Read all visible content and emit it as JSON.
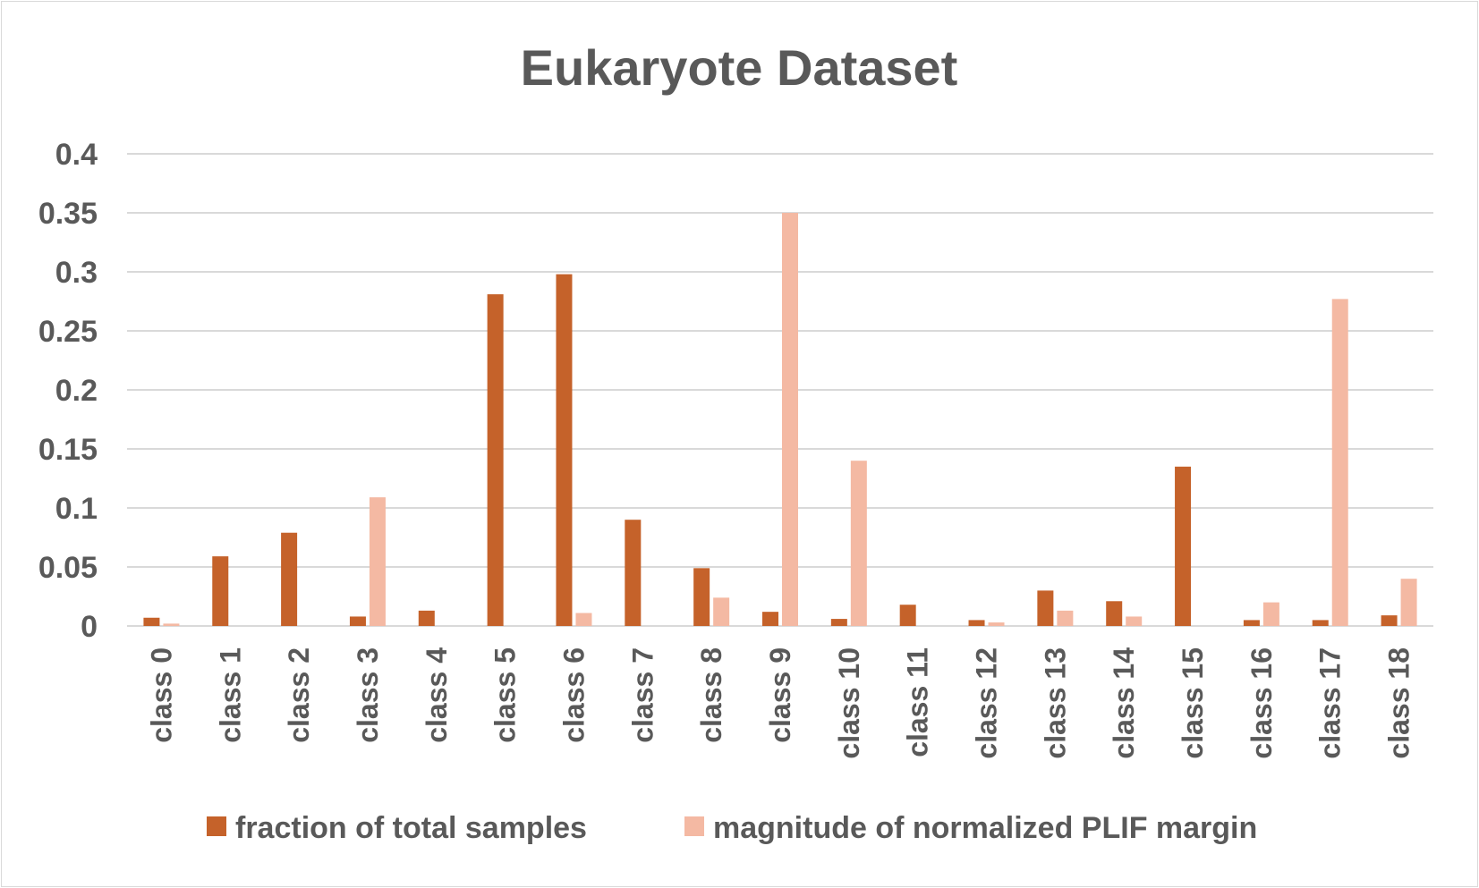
{
  "chart_data": {
    "type": "bar",
    "title": "Eukaryote Dataset",
    "xlabel": "",
    "ylabel": "",
    "ylim": [
      0,
      0.4
    ],
    "yticks": [
      "0",
      "0.05",
      "0.1",
      "0.15",
      "0.2",
      "0.25",
      "0.3",
      "0.35",
      "0.4"
    ],
    "ytick_values": [
      0,
      0.05,
      0.1,
      0.15,
      0.2,
      0.25,
      0.3,
      0.35,
      0.4
    ],
    "grid": true,
    "legend_position": "bottom",
    "categories": [
      "class 0",
      "class 1",
      "class 2",
      "class 3",
      "class 4",
      "class 5",
      "class 6",
      "class 7",
      "class 8",
      "class 9",
      "class 10",
      "class 11",
      "class 12",
      "class 13",
      "class 14",
      "class 15",
      "class 16",
      "class 17",
      "class 18"
    ],
    "series": [
      {
        "name": "fraction of total samples",
        "color": "#c5622a",
        "values": [
          0.007,
          0.059,
          0.079,
          0.008,
          0.013,
          0.281,
          0.298,
          0.09,
          0.049,
          0.012,
          0.006,
          0.018,
          0.005,
          0.03,
          0.021,
          0.135,
          0.005,
          0.005,
          0.009
        ]
      },
      {
        "name": "magnitude of normalized PLIF margin",
        "color": "#f4b9a3",
        "values": [
          0.002,
          0,
          0,
          0.109,
          0,
          0,
          0.011,
          0,
          0.024,
          0.35,
          0.14,
          0,
          0.003,
          0.013,
          0.008,
          0,
          0.02,
          0.277,
          0.04
        ]
      }
    ]
  }
}
